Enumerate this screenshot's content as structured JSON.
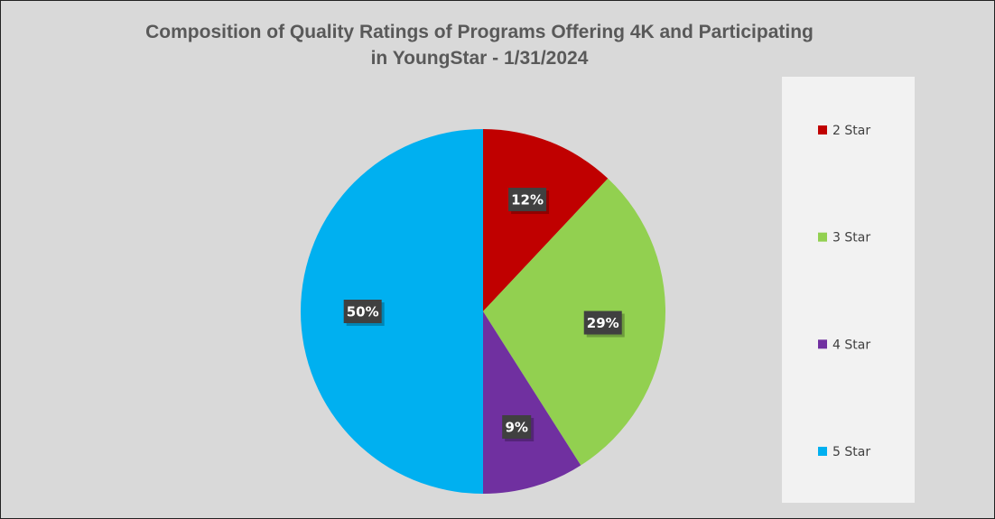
{
  "chart_data": {
    "type": "pie",
    "title": "Composition of Quality Ratings of Programs Offering 4K and Participating in YoungStar - 1/31/2024",
    "categories": [
      "2 Star",
      "3 Star",
      "4 Star",
      "5 Star"
    ],
    "values": [
      12,
      29,
      9,
      50
    ],
    "value_labels": [
      "12%",
      "29%",
      "9%",
      "50%"
    ],
    "colors": [
      "#c00000",
      "#92d050",
      "#7030a0",
      "#00b0f0"
    ],
    "legend": "right"
  }
}
